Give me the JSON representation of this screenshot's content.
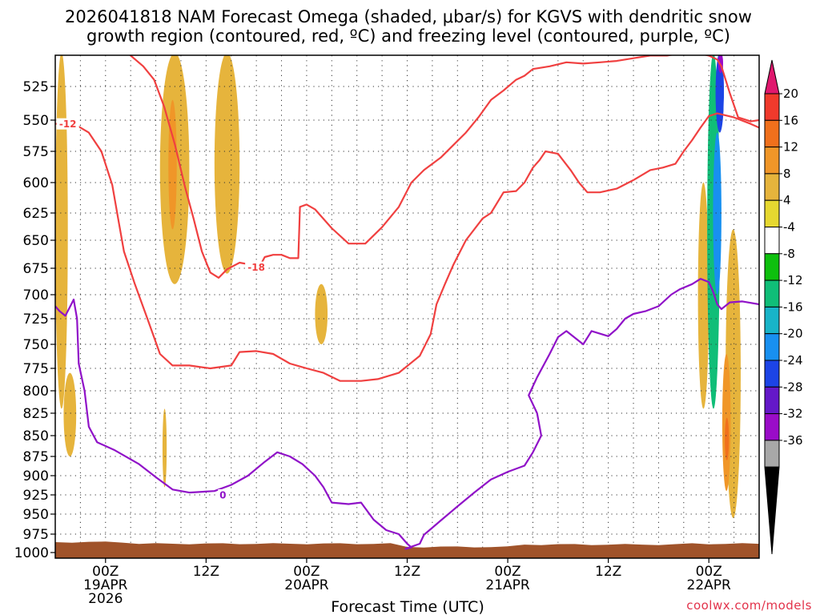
{
  "chart_data": {
    "type": "time-height-contour",
    "title_line1": "2026041818 NAM Forecast Omega (shaded, μbar/s) for KGVS with dendritic snow",
    "title_line2": "growth region (contoured, red, ºC) and freezing level (contoured, purple, ºC)",
    "xlabel": "Forecast Time (UTC)",
    "credit": "coolwx.com/models",
    "x_units": "forecast hours from 2026041818",
    "xlim": [
      0,
      84
    ],
    "y_units": "mb",
    "ylim": [
      1000,
      500
    ],
    "y_ticks": [
      "525",
      "550",
      "575",
      "600",
      "625",
      "650",
      "675",
      "700",
      "725",
      "750",
      "775",
      "800",
      "825",
      "850",
      "875",
      "900",
      "925",
      "950",
      "975",
      "1000"
    ],
    "x_ticks": [
      {
        "hour": 6,
        "l1": "00Z",
        "l2": "19APR",
        "l3": "2026"
      },
      {
        "hour": 18,
        "l1": "12Z",
        "l2": "",
        "l3": ""
      },
      {
        "hour": 30,
        "l1": "00Z",
        "l2": "20APR",
        "l3": ""
      },
      {
        "hour": 42,
        "l1": "12Z",
        "l2": "",
        "l3": ""
      },
      {
        "hour": 54,
        "l1": "00Z",
        "l2": "21APR",
        "l3": ""
      },
      {
        "hour": 66,
        "l1": "12Z",
        "l2": "",
        "l3": ""
      },
      {
        "hour": 78,
        "l1": "00Z",
        "l2": "22APR",
        "l3": ""
      }
    ],
    "colorbar": {
      "labels": [
        "20",
        "16",
        "12",
        "8",
        "4",
        "-4",
        "-8",
        "-12",
        "-16",
        "-20",
        "-24",
        "-28",
        "-32",
        "-36"
      ],
      "levels": [
        36,
        20,
        16,
        12,
        8,
        4,
        -4,
        -8,
        -12,
        -16,
        -20,
        -24,
        -28,
        -32,
        -36,
        -52
      ],
      "colors": [
        "#e0186e",
        "#f03a2c",
        "#f0701c",
        "#f09628",
        "#e6b43c",
        "#e6d830",
        "#ffffff",
        "#0ec00e",
        "#10be78",
        "#18b4c8",
        "#1890f0",
        "#1c44e6",
        "#6418c8",
        "#9a0cc8",
        "#a8a8a8",
        "#000000"
      ]
    },
    "omega_patches": [
      {
        "value": 6,
        "t_start": 0.0,
        "t_end": 1.5,
        "p_top": 500,
        "p_bot": 820
      },
      {
        "value": 6,
        "t_start": 1.0,
        "t_end": 2.5,
        "p_top": 780,
        "p_bot": 875
      },
      {
        "value": -6,
        "t_start": 8.5,
        "t_end": 11.5,
        "p_top": 500,
        "p_bot": 590
      },
      {
        "value": -6,
        "t_start": 8.5,
        "t_end": 9.5,
        "p_top": 520,
        "p_bot": 600
      },
      {
        "value": 6,
        "t_start": 12.5,
        "t_end": 16.0,
        "p_top": 500,
        "p_bot": 690
      },
      {
        "value": 10,
        "t_start": 13.5,
        "t_end": 14.5,
        "p_top": 535,
        "p_bot": 640
      },
      {
        "value": 6,
        "t_start": 12.8,
        "t_end": 13.3,
        "p_top": 820,
        "p_bot": 915
      },
      {
        "value": 6,
        "t_start": 19.0,
        "t_end": 22.0,
        "p_top": 500,
        "p_bot": 680
      },
      {
        "value": -6,
        "t_start": 23.3,
        "t_end": 24.6,
        "p_top": 645,
        "p_bot": 905
      },
      {
        "value": -6,
        "t_start": 25.5,
        "t_end": 26.8,
        "p_top": 555,
        "p_bot": 755
      },
      {
        "value": 6,
        "t_start": 31.0,
        "t_end": 32.5,
        "p_top": 690,
        "p_bot": 750
      },
      {
        "value": -6,
        "t_start": 30.0,
        "t_end": 30.4,
        "p_top": 895,
        "p_bot": 905
      },
      {
        "value": -6,
        "t_start": 62.3,
        "t_end": 63.6,
        "p_top": 690,
        "p_bot": 810
      },
      {
        "value": -6,
        "t_start": 63.8,
        "t_end": 67.0,
        "p_top": 740,
        "p_bot": 870
      },
      {
        "value": -6,
        "t_start": 75.0,
        "t_end": 76.3,
        "p_top": 665,
        "p_bot": 800
      },
      {
        "value": 6,
        "t_start": 76.7,
        "t_end": 78.0,
        "p_top": 600,
        "p_bot": 820
      },
      {
        "value": -14,
        "t_start": 77.8,
        "t_end": 79.3,
        "p_top": 500,
        "p_bot": 820
      },
      {
        "value": -20,
        "t_start": 78.5,
        "t_end": 79.5,
        "p_top": 560,
        "p_bot": 700
      },
      {
        "value": -26,
        "t_start": 78.8,
        "t_end": 79.8,
        "p_top": 500,
        "p_bot": 560
      },
      {
        "value": -34,
        "t_start": 79.1,
        "t_end": 79.7,
        "p_top": 500,
        "p_bot": 515
      },
      {
        "value": -6,
        "t_start": 79.7,
        "t_end": 81.0,
        "p_top": 500,
        "p_bot": 650
      },
      {
        "value": 6,
        "t_start": 80.0,
        "t_end": 81.8,
        "p_top": 640,
        "p_bot": 955
      },
      {
        "value": 10,
        "t_start": 79.6,
        "t_end": 80.6,
        "p_top": 760,
        "p_bot": 920
      },
      {
        "value": 14,
        "t_start": 79.9,
        "t_end": 80.4,
        "p_top": 830,
        "p_bot": 880
      },
      {
        "value": -6,
        "t_start": 82.8,
        "t_end": 83.3,
        "p_top": 780,
        "p_bot": 825
      }
    ],
    "dgz_contours": [
      {
        "label": "-12",
        "label_at": [
          1.5,
          553
        ],
        "points": [
          [
            0,
            553
          ],
          [
            2,
            552
          ],
          [
            4,
            560
          ],
          [
            5.5,
            575
          ],
          [
            6.8,
            602
          ],
          [
            7.5,
            630
          ],
          [
            8.2,
            660
          ],
          [
            9.5,
            690
          ],
          [
            11,
            725
          ],
          [
            12.5,
            760
          ],
          [
            14,
            772
          ],
          [
            16,
            772
          ],
          [
            18.5,
            775
          ],
          [
            21,
            772
          ],
          [
            22,
            758
          ],
          [
            24,
            757
          ],
          [
            26,
            760
          ],
          [
            28,
            770
          ],
          [
            30,
            775
          ],
          [
            32,
            780
          ],
          [
            34,
            789
          ],
          [
            36.5,
            789
          ],
          [
            38.5,
            787
          ],
          [
            41,
            780
          ],
          [
            43.5,
            762
          ],
          [
            44.8,
            740
          ],
          [
            45.5,
            710
          ],
          [
            46.5,
            690
          ],
          [
            47.5,
            672
          ],
          [
            49,
            650
          ],
          [
            51,
            630
          ],
          [
            52,
            625
          ],
          [
            53.5,
            608
          ],
          [
            55,
            607
          ],
          [
            56,
            600
          ],
          [
            57,
            588
          ],
          [
            57.8,
            582
          ],
          [
            58.5,
            575
          ],
          [
            60,
            577
          ],
          [
            61.5,
            590
          ],
          [
            62.5,
            600
          ],
          [
            63.5,
            608
          ],
          [
            65,
            608
          ],
          [
            67,
            605
          ],
          [
            69,
            598
          ],
          [
            71,
            590
          ],
          [
            72.5,
            588
          ],
          [
            74,
            585
          ],
          [
            75,
            575
          ],
          [
            76,
            566
          ],
          [
            77,
            556
          ],
          [
            78,
            547
          ],
          [
            79,
            545
          ],
          [
            81,
            548
          ],
          [
            83,
            553
          ],
          [
            84,
            556
          ]
        ]
      },
      {
        "label": "-18",
        "label_at": [
          24,
          674
        ],
        "points": [
          [
            7.5,
            495
          ],
          [
            9,
            502
          ],
          [
            10.5,
            510
          ],
          [
            11.8,
            520
          ],
          [
            13,
            540
          ],
          [
            14.3,
            570
          ],
          [
            15.5,
            604
          ],
          [
            16.5,
            630
          ],
          [
            17.5,
            660
          ],
          [
            18.5,
            679
          ],
          [
            19.5,
            684
          ],
          [
            20.5,
            676
          ],
          [
            22,
            670
          ],
          [
            23.5,
            672
          ],
          [
            24.5,
            672
          ],
          [
            25,
            665
          ],
          [
            26,
            663
          ],
          [
            27,
            663
          ],
          [
            28,
            666
          ],
          [
            29,
            666
          ],
          [
            29.2,
            620
          ],
          [
            30,
            618
          ],
          [
            31,
            622
          ],
          [
            33,
            639
          ],
          [
            35,
            653
          ],
          [
            37,
            653
          ],
          [
            39,
            638
          ],
          [
            41,
            620
          ],
          [
            42.5,
            600
          ],
          [
            44,
            590
          ],
          [
            46,
            580
          ],
          [
            47.5,
            570
          ],
          [
            49,
            560
          ],
          [
            50.5,
            548
          ],
          [
            52,
            535
          ],
          [
            53.5,
            528
          ],
          [
            55,
            520
          ],
          [
            56,
            517
          ],
          [
            57,
            512
          ],
          [
            59,
            510
          ],
          [
            61,
            507
          ],
          [
            63,
            508
          ],
          [
            65,
            507
          ],
          [
            67,
            506
          ],
          [
            69,
            504
          ],
          [
            71,
            502
          ],
          [
            73,
            502
          ],
          [
            75,
            500
          ],
          [
            76.5,
            500
          ],
          [
            78,
            502
          ],
          [
            79,
            505
          ],
          [
            79.5,
            510
          ],
          [
            80.5,
            530
          ],
          [
            81.5,
            548
          ],
          [
            83,
            551
          ],
          [
            84,
            550
          ]
        ]
      }
    ],
    "freezing_level_contour": {
      "label": "0",
      "label_at": [
        20,
        925
      ],
      "points": [
        [
          0,
          712
        ],
        [
          0.5,
          717
        ],
        [
          1.2,
          722
        ],
        [
          1.8,
          712
        ],
        [
          2.2,
          705
        ],
        [
          2.6,
          725
        ],
        [
          2.8,
          770
        ],
        [
          3.5,
          800
        ],
        [
          4,
          840
        ],
        [
          5,
          858
        ],
        [
          7,
          867
        ],
        [
          10,
          885
        ],
        [
          12,
          902
        ],
        [
          14,
          918
        ],
        [
          16,
          922
        ],
        [
          19,
          920
        ],
        [
          21,
          912
        ],
        [
          23,
          900
        ],
        [
          25,
          882
        ],
        [
          26.5,
          870
        ],
        [
          28,
          875
        ],
        [
          29.5,
          885
        ],
        [
          31,
          900
        ],
        [
          32,
          915
        ],
        [
          33,
          935
        ],
        [
          35,
          937
        ],
        [
          36.5,
          935
        ],
        [
          38,
          957
        ],
        [
          39.5,
          970
        ],
        [
          41,
          975
        ],
        [
          42,
          988
        ],
        [
          42.5,
          993
        ],
        [
          41.8,
          995
        ],
        [
          43.5,
          988
        ],
        [
          44,
          976
        ],
        [
          45,
          967
        ],
        [
          46,
          958
        ],
        [
          48,
          940
        ],
        [
          50,
          922
        ],
        [
          52,
          905
        ],
        [
          54,
          895
        ],
        [
          56,
          887
        ],
        [
          57,
          870
        ],
        [
          58,
          850
        ],
        [
          57.5,
          825
        ],
        [
          56.5,
          805
        ],
        [
          57.5,
          785
        ],
        [
          59,
          760
        ],
        [
          60,
          743
        ],
        [
          61,
          737
        ],
        [
          63,
          750
        ],
        [
          64,
          737
        ],
        [
          66,
          742
        ],
        [
          67,
          735
        ],
        [
          68,
          725
        ],
        [
          69,
          720
        ],
        [
          70.5,
          717
        ],
        [
          72,
          712
        ],
        [
          73.5,
          700
        ],
        [
          74.5,
          695
        ],
        [
          76,
          690
        ],
        [
          77,
          685
        ],
        [
          78,
          688
        ],
        [
          78.5,
          697
        ],
        [
          79,
          710
        ],
        [
          79.5,
          715
        ],
        [
          80.5,
          708
        ],
        [
          82,
          707
        ],
        [
          84,
          710
        ]
      ]
    },
    "terrain_top_mb": 988
  }
}
